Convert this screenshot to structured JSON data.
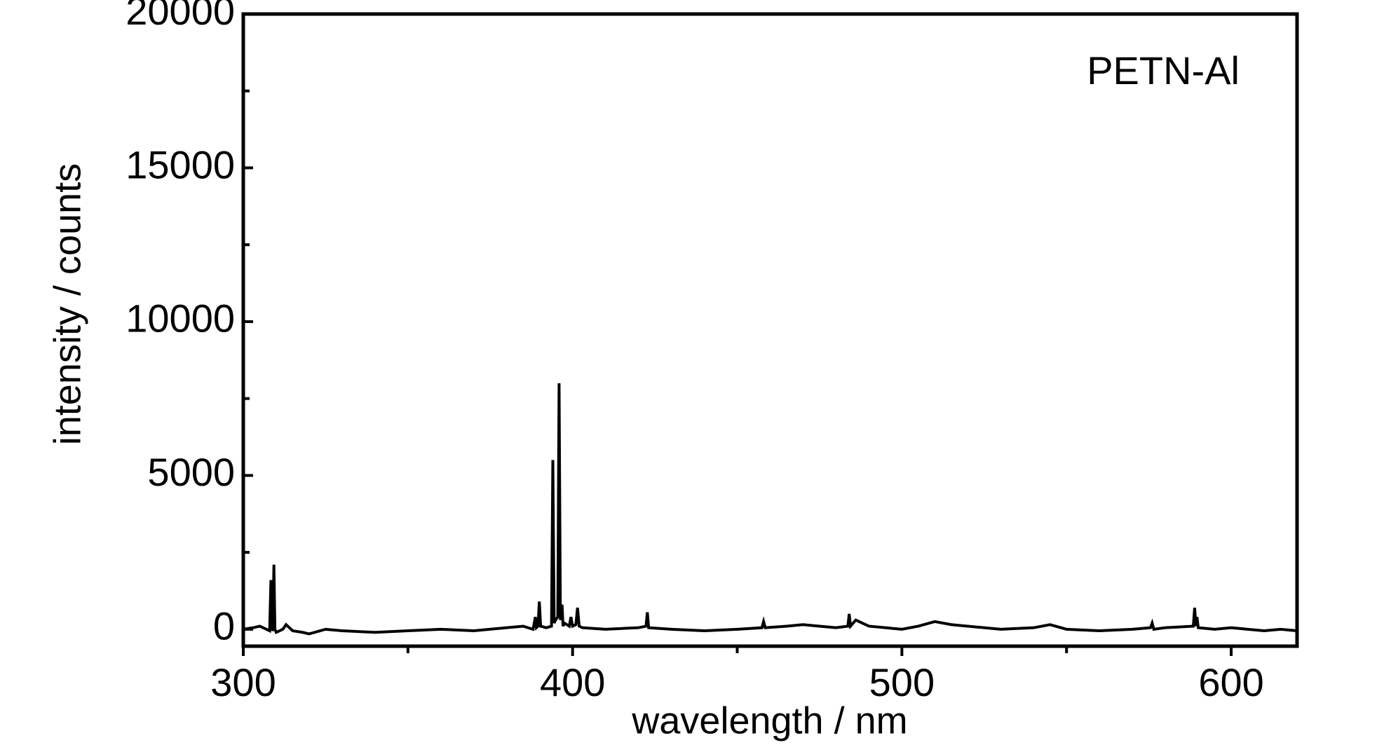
{
  "chart_data": {
    "type": "line",
    "x_label": "wavelength / nm",
    "y_label": "intensity / counts",
    "annotation": "PETN-Al",
    "color": "#000000",
    "xlim": [
      300,
      620
    ],
    "ylim": [
      -550,
      20000
    ],
    "xticks": [
      300,
      400,
      500,
      600
    ],
    "xminor": [
      350,
      450,
      550
    ],
    "yticks": [
      0,
      5000,
      10000,
      15000,
      20000
    ],
    "yminor": [
      2500,
      7500,
      12500,
      17500
    ],
    "x": [
      300,
      303,
      305,
      307,
      308,
      308.4,
      308.8,
      309,
      309.3,
      309.6,
      310,
      312,
      313,
      315,
      318,
      320,
      325,
      330,
      340,
      350,
      360,
      370,
      380,
      385,
      388,
      388.7,
      389,
      389.5,
      389.9,
      390.3,
      392,
      393.6,
      394,
      394.4,
      394.8,
      395.5,
      395.9,
      396.3,
      396.8,
      397.1,
      397.5,
      399,
      399.5,
      400,
      401,
      401.5,
      402,
      403,
      410,
      420,
      422.3,
      422.7,
      423.1,
      430,
      440,
      450,
      457.5,
      458,
      458.5,
      465,
      470,
      475,
      480,
      483.6,
      484,
      484.4,
      486,
      490,
      500,
      505,
      510,
      515,
      520,
      530,
      540,
      545,
      550,
      560,
      570,
      575.5,
      576,
      576.5,
      580,
      588.5,
      588.9,
      589.3,
      589.6,
      590,
      595,
      600,
      605,
      610,
      615,
      620
    ],
    "values": [
      0,
      50,
      100,
      0,
      -50,
      1600,
      -50,
      0,
      2100,
      0,
      -100,
      0,
      150,
      -50,
      -100,
      -150,
      0,
      -50,
      -100,
      -50,
      0,
      -50,
      50,
      100,
      0,
      400,
      50,
      100,
      900,
      100,
      50,
      100,
      5500,
      200,
      300,
      400,
      8000,
      300,
      800,
      100,
      200,
      100,
      400,
      100,
      150,
      700,
      100,
      50,
      0,
      50,
      100,
      550,
      50,
      0,
      -50,
      0,
      50,
      250,
      50,
      100,
      150,
      100,
      50,
      100,
      500,
      100,
      300,
      100,
      0,
      100,
      250,
      150,
      100,
      0,
      50,
      150,
      0,
      -50,
      0,
      50,
      200,
      0,
      50,
      100,
      700,
      100,
      400,
      50,
      0,
      50,
      0,
      -50,
      0,
      -50
    ]
  }
}
